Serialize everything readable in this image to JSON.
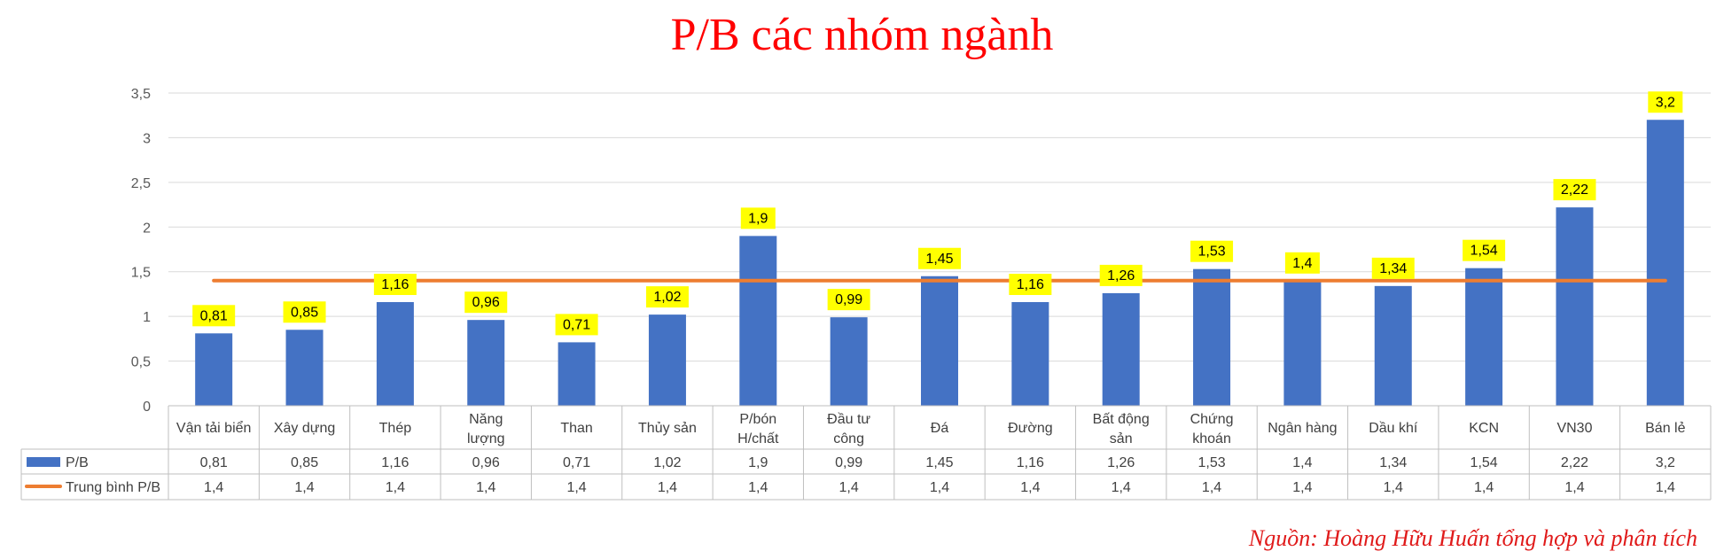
{
  "title": "P/B các nhóm ngành",
  "source": "Nguồn: Hoàng Hữu Huấn tổng hợp và phân tích",
  "colors": {
    "bar": "#4472c4",
    "line": "#ed7d31",
    "label_bg": "#ffff00",
    "title": "#ff0000",
    "grid": "#d9d9d9"
  },
  "chart_data": {
    "type": "bar",
    "categories": [
      "Vận tải biển",
      "Xây dựng",
      "Thép",
      "Năng lượng",
      "Than",
      "Thủy sản",
      "P/bón H/chất",
      "Đầu tư công",
      "Đá",
      "Đường",
      "Bất động sản",
      "Chứng khoán",
      "Ngân hàng",
      "Dầu khí",
      "KCN",
      "VN30",
      "Bán lẻ"
    ],
    "category_lines": [
      [
        "Vận tải biển"
      ],
      [
        "Xây dựng"
      ],
      [
        "Thép"
      ],
      [
        "Năng",
        "lượng"
      ],
      [
        "Than"
      ],
      [
        "Thủy sản"
      ],
      [
        "P/bón",
        "H/chất"
      ],
      [
        "Đầu tư",
        "công"
      ],
      [
        "Đá"
      ],
      [
        "Đường"
      ],
      [
        "Bất động",
        "sản"
      ],
      [
        "Chứng",
        "khoán"
      ],
      [
        "Ngân hàng"
      ],
      [
        "Dầu khí"
      ],
      [
        "KCN"
      ],
      [
        "VN30"
      ],
      [
        "Bán lẻ"
      ]
    ],
    "series": [
      {
        "name": "P/B",
        "type": "bar",
        "values": [
          0.81,
          0.85,
          1.16,
          0.96,
          0.71,
          1.02,
          1.9,
          0.99,
          1.45,
          1.16,
          1.26,
          1.53,
          1.4,
          1.34,
          1.54,
          2.22,
          3.2
        ],
        "labels": [
          "0,81",
          "0,85",
          "1,16",
          "0,96",
          "0,71",
          "1,02",
          "1,9",
          "0,99",
          "1,45",
          "1,16",
          "1,26",
          "1,53",
          "1,4",
          "1,34",
          "1,54",
          "2,22",
          "3,2"
        ]
      },
      {
        "name": "Trung bình P/B",
        "type": "line",
        "values": [
          1.4,
          1.4,
          1.4,
          1.4,
          1.4,
          1.4,
          1.4,
          1.4,
          1.4,
          1.4,
          1.4,
          1.4,
          1.4,
          1.4,
          1.4,
          1.4,
          1.4
        ],
        "labels": [
          "1,4",
          "1,4",
          "1,4",
          "1,4",
          "1,4",
          "1,4",
          "1,4",
          "1,4",
          "1,4",
          "1,4",
          "1,4",
          "1,4",
          "1,4",
          "1,4",
          "1,4",
          "1,4",
          "1,4"
        ]
      }
    ],
    "ylim": [
      0,
      3.5
    ],
    "yticks": [
      0,
      0.5,
      1,
      1.5,
      2,
      2.5,
      3,
      3.5
    ],
    "ytick_labels": [
      "0",
      "0,5",
      "1",
      "1,5",
      "2",
      "2,5",
      "3",
      "3,5"
    ],
    "grid": true,
    "data_table": true
  }
}
